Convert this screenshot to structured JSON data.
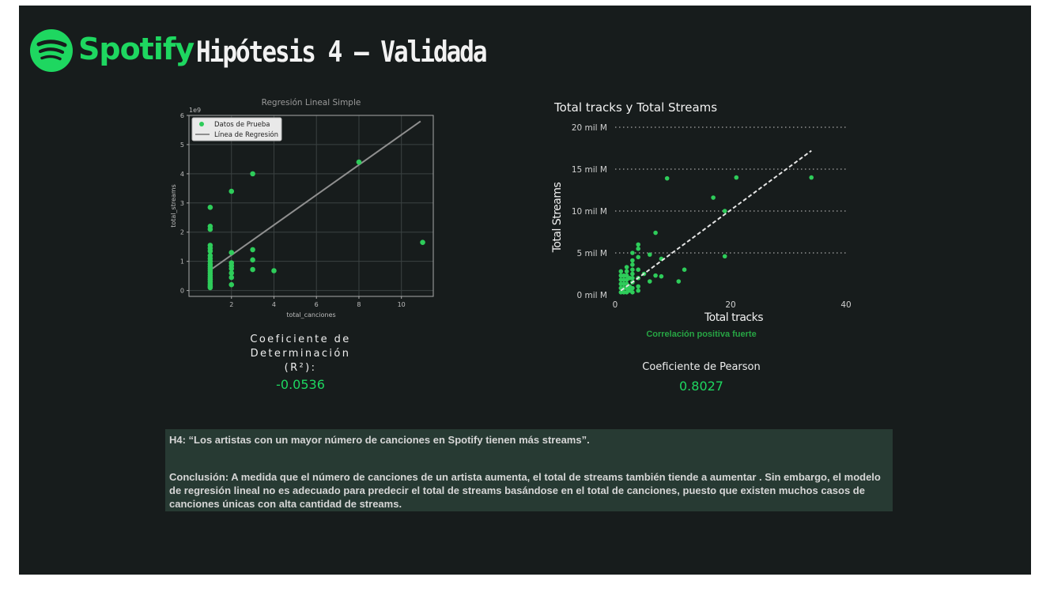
{
  "header": {
    "logo_text": "Spotify",
    "title": "Hipótesis 4 – Validada"
  },
  "metrics": {
    "r2_label": "Coeficiente de Determinación (R²):",
    "r2_value": "-0.0536",
    "correlation_note": "Correlación positiva fuerte",
    "pearson_label": "Coeficiente de Pearson",
    "pearson_value": "0.8027"
  },
  "text_box": {
    "hypothesis": "H4: “Los artistas con un mayor número de canciones en Spotify tienen más streams”.",
    "conclusion": "Conclusión:   A medida que el número de canciones de un artista aumenta, el total de streams también tiende a aumentar . Sin embargo, el modelo de regresión lineal no es adecuado para predecir el total de streams basándose en el total de canciones, puesto que existen muchos casos de canciones únicas con alta cantidad de streams."
  },
  "colors": {
    "background": "#171c1c",
    "accent": "#1ed760",
    "box": "#273a33"
  },
  "chart_data": [
    {
      "type": "scatter",
      "title": "Regresión Lineal Simple",
      "xlabel": "total_canciones",
      "ylabel": "total_streams",
      "y_multiplier": "1e9",
      "xlim": [
        0.0,
        11.5
      ],
      "ylim": [
        -0.2,
        6.0
      ],
      "xticks": [
        2,
        4,
        6,
        8,
        10
      ],
      "yticks": [
        0,
        1,
        2,
        3,
        4,
        5,
        6
      ],
      "grid": true,
      "legend_position": "top-left",
      "series": [
        {
          "name": "Datos de Prueba",
          "color": "#2ecc5a",
          "points": [
            [
              1,
              2.85
            ],
            [
              1,
              2.2
            ],
            [
              1,
              2.1
            ],
            [
              1,
              1.55
            ],
            [
              1,
              1.45
            ],
            [
              1,
              1.35
            ],
            [
              1,
              1.2
            ],
            [
              1,
              1.1
            ],
            [
              1,
              1.0
            ],
            [
              1,
              0.9
            ],
            [
              1,
              0.82
            ],
            [
              1,
              0.75
            ],
            [
              1,
              0.68
            ],
            [
              1,
              0.6
            ],
            [
              1,
              0.52
            ],
            [
              1,
              0.45
            ],
            [
              1,
              0.38
            ],
            [
              1,
              0.3
            ],
            [
              1,
              0.22
            ],
            [
              1,
              0.15
            ],
            [
              1,
              0.1
            ],
            [
              2,
              3.4
            ],
            [
              2,
              1.3
            ],
            [
              2,
              0.95
            ],
            [
              2,
              0.85
            ],
            [
              2,
              0.75
            ],
            [
              2,
              0.6
            ],
            [
              2,
              0.45
            ],
            [
              2,
              0.2
            ],
            [
              3,
              4.0
            ],
            [
              3,
              1.4
            ],
            [
              3,
              1.05
            ],
            [
              3,
              0.72
            ],
            [
              4,
              0.68
            ],
            [
              8,
              4.4
            ],
            [
              11,
              1.65
            ]
          ]
        },
        {
          "name": "Línea de Regresión",
          "color": "#8f8f8f",
          "line": [
            [
              1,
              0.7
            ],
            [
              10.9,
              5.8
            ]
          ]
        }
      ]
    },
    {
      "type": "scatter",
      "title": "Total tracks y Total Streams",
      "xlabel": "Total tracks",
      "ylabel": "Total Streams",
      "xlim": [
        0,
        40
      ],
      "ylim": [
        0,
        20
      ],
      "xticks": [
        0,
        20,
        40
      ],
      "yticks": [
        0,
        5,
        10,
        15,
        20
      ],
      "ytick_labels": [
        "0 mil M",
        "5 mil M",
        "10 mil M",
        "15 mil M",
        "20 mil M"
      ],
      "grid": true,
      "series": [
        {
          "name": "",
          "color": "#2ecc5a",
          "points": [
            [
              1,
              0.3
            ],
            [
              1,
              0.8
            ],
            [
              1,
              1.3
            ],
            [
              1,
              1.8
            ],
            [
              1,
              2.3
            ],
            [
              1,
              2.8
            ],
            [
              1.5,
              0.3
            ],
            [
              1.5,
              0.8
            ],
            [
              1.5,
              1.3
            ],
            [
              1.5,
              1.8
            ],
            [
              1.5,
              2.3
            ],
            [
              2,
              0.3
            ],
            [
              2,
              0.8
            ],
            [
              2,
              1.3
            ],
            [
              2,
              1.8
            ],
            [
              2,
              2.3
            ],
            [
              2,
              2.8
            ],
            [
              2,
              3.3
            ],
            [
              2.5,
              0.5
            ],
            [
              2.5,
              1.0
            ],
            [
              2.5,
              2.0
            ],
            [
              3,
              0.3
            ],
            [
              3,
              0.8
            ],
            [
              3,
              1.5
            ],
            [
              3,
              2.0
            ],
            [
              3,
              2.5
            ],
            [
              3,
              3.0
            ],
            [
              3,
              3.6
            ],
            [
              3,
              4.1
            ],
            [
              3,
              5.0
            ],
            [
              4,
              0.5
            ],
            [
              4,
              1.0
            ],
            [
              4,
              2.0
            ],
            [
              4,
              3.0
            ],
            [
              4,
              4.5
            ],
            [
              4,
              5.5
            ],
            [
              4,
              6.0
            ],
            [
              5,
              2.5
            ],
            [
              6,
              1.6
            ],
            [
              6,
              4.8
            ],
            [
              7,
              2.3
            ],
            [
              7,
              7.4
            ],
            [
              8,
              2.2
            ],
            [
              8,
              4.3
            ],
            [
              9,
              13.9
            ],
            [
              11,
              1.6
            ],
            [
              12,
              3.0
            ],
            [
              17,
              11.6
            ],
            [
              19,
              4.6
            ],
            [
              19,
              10.0
            ],
            [
              21,
              14.0
            ],
            [
              34,
              14.0
            ]
          ]
        },
        {
          "name": "",
          "color": "#e6e6e6",
          "trend": [
            [
              1,
              0.5
            ],
            [
              34,
              17.2
            ]
          ]
        }
      ]
    }
  ]
}
